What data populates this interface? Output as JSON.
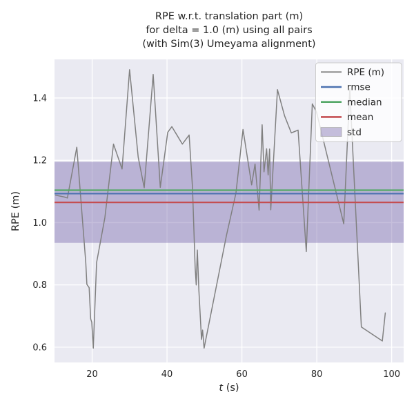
{
  "figure": {
    "title_lines": [
      "RPE w.r.t. translation part (m)",
      "for delta = 1.0 (m) using all pairs",
      "(with Sim(3) Umeyama alignment)"
    ]
  },
  "chart_data": {
    "type": "line",
    "title": "RPE w.r.t. translation part (m) for delta = 1.0 (m) using all pairs (with Sim(3) Umeyama alignment)",
    "xlabel": "t (s)",
    "xlabel_var": "t",
    "xlabel_unit": " (s)",
    "ylabel": "RPE (m)",
    "xlim": [
      9.95,
      103.2
    ],
    "ylim": [
      0.551,
      1.524
    ],
    "xticks": [
      20,
      40,
      60,
      80,
      100
    ],
    "yticks": [
      0.6,
      0.8,
      1.0,
      1.2,
      1.4
    ],
    "grid": true,
    "legend_position": "upper right",
    "background_color": "#eaeaf2",
    "grid_color": "#ffffff",
    "text_color": "#262626",
    "series": [
      {
        "name": "RPE (m)",
        "kind": "line",
        "color": "#808080",
        "points": [
          [
            10.2,
            1.088
          ],
          [
            12.6,
            1.082
          ],
          [
            13.4,
            1.079
          ],
          [
            15.9,
            1.242
          ],
          [
            18.3,
            0.872
          ],
          [
            18.6,
            0.802
          ],
          [
            19.2,
            0.791
          ],
          [
            19.6,
            0.691
          ],
          [
            19.9,
            0.68
          ],
          [
            20.3,
            0.597
          ],
          [
            21.2,
            0.872
          ],
          [
            23.4,
            1.016
          ],
          [
            25.7,
            1.252
          ],
          [
            28.0,
            1.172
          ],
          [
            30.0,
            1.491
          ],
          [
            32.3,
            1.21
          ],
          [
            33.9,
            1.112
          ],
          [
            36.3,
            1.476
          ],
          [
            38.2,
            1.113
          ],
          [
            40.2,
            1.29
          ],
          [
            41.3,
            1.308
          ],
          [
            44.1,
            1.252
          ],
          [
            45.9,
            1.281
          ],
          [
            46.8,
            1.112
          ],
          [
            47.5,
            0.857
          ],
          [
            47.8,
            0.8
          ],
          [
            48.1,
            0.912
          ],
          [
            48.5,
            0.784
          ],
          [
            49.0,
            0.673
          ],
          [
            49.2,
            0.625
          ],
          [
            49.5,
            0.655
          ],
          [
            49.9,
            0.597
          ],
          [
            55.9,
            0.96
          ],
          [
            58.4,
            1.094
          ],
          [
            60.3,
            1.299
          ],
          [
            62.6,
            1.121
          ],
          [
            63.5,
            1.188
          ],
          [
            64.6,
            1.04
          ],
          [
            65.4,
            1.314
          ],
          [
            65.9,
            1.163
          ],
          [
            66.6,
            1.237
          ],
          [
            67.0,
            1.153
          ],
          [
            67.4,
            1.236
          ],
          [
            67.7,
            1.041
          ],
          [
            69.5,
            1.427
          ],
          [
            71.4,
            1.343
          ],
          [
            73.2,
            1.288
          ],
          [
            75.0,
            1.297
          ],
          [
            77.2,
            0.907
          ],
          [
            78.8,
            1.381
          ],
          [
            79.9,
            1.356
          ],
          [
            87.2,
            0.996
          ],
          [
            88.8,
            1.43
          ],
          [
            91.9,
            0.665
          ],
          [
            97.5,
            0.62
          ],
          [
            98.3,
            0.71
          ]
        ]
      },
      {
        "name": "rmse",
        "kind": "hline",
        "color": "#4c72b0",
        "value": 1.093
      },
      {
        "name": "median",
        "kind": "hline",
        "color": "#55a868",
        "value": 1.104
      },
      {
        "name": "mean",
        "kind": "hline",
        "color": "#c44e52",
        "value": 1.065
      },
      {
        "name": "std",
        "kind": "band",
        "color": "#8172b2",
        "center": 1.065,
        "std": 0.13,
        "range": [
          0.935,
          1.195
        ]
      }
    ]
  }
}
